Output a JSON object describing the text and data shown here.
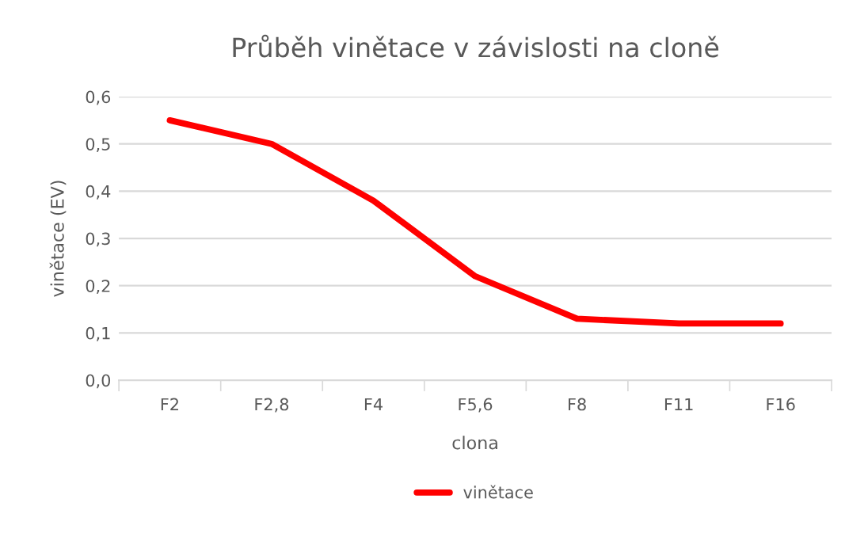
{
  "chart_data": {
    "type": "line",
    "title": "Průběh vinětace v závislosti na cloně",
    "xlabel": "clona",
    "ylabel": "vinětace (EV)",
    "categories": [
      "F2",
      "F2,8",
      "F4",
      "F5,6",
      "F8",
      "F11",
      "F16"
    ],
    "series": [
      {
        "name": "vinětace",
        "color": "#ff0000",
        "values": [
          0.55,
          0.5,
          0.38,
          0.22,
          0.13,
          0.12,
          0.12
        ]
      }
    ],
    "ylim": [
      0,
      0.6
    ],
    "yticks": [
      {
        "value": 0,
        "label": "0,0"
      },
      {
        "value": 0.1,
        "label": "0,1"
      },
      {
        "value": 0.2,
        "label": "0,2"
      },
      {
        "value": 0.3,
        "label": "0,3"
      },
      {
        "value": 0.4,
        "label": "0,4"
      },
      {
        "value": 0.5,
        "label": "0,5"
      },
      {
        "value": 0.6,
        "label": "0,6"
      }
    ],
    "grid": "y",
    "legend": "bottom",
    "marker": "none",
    "line_style": "solid"
  }
}
